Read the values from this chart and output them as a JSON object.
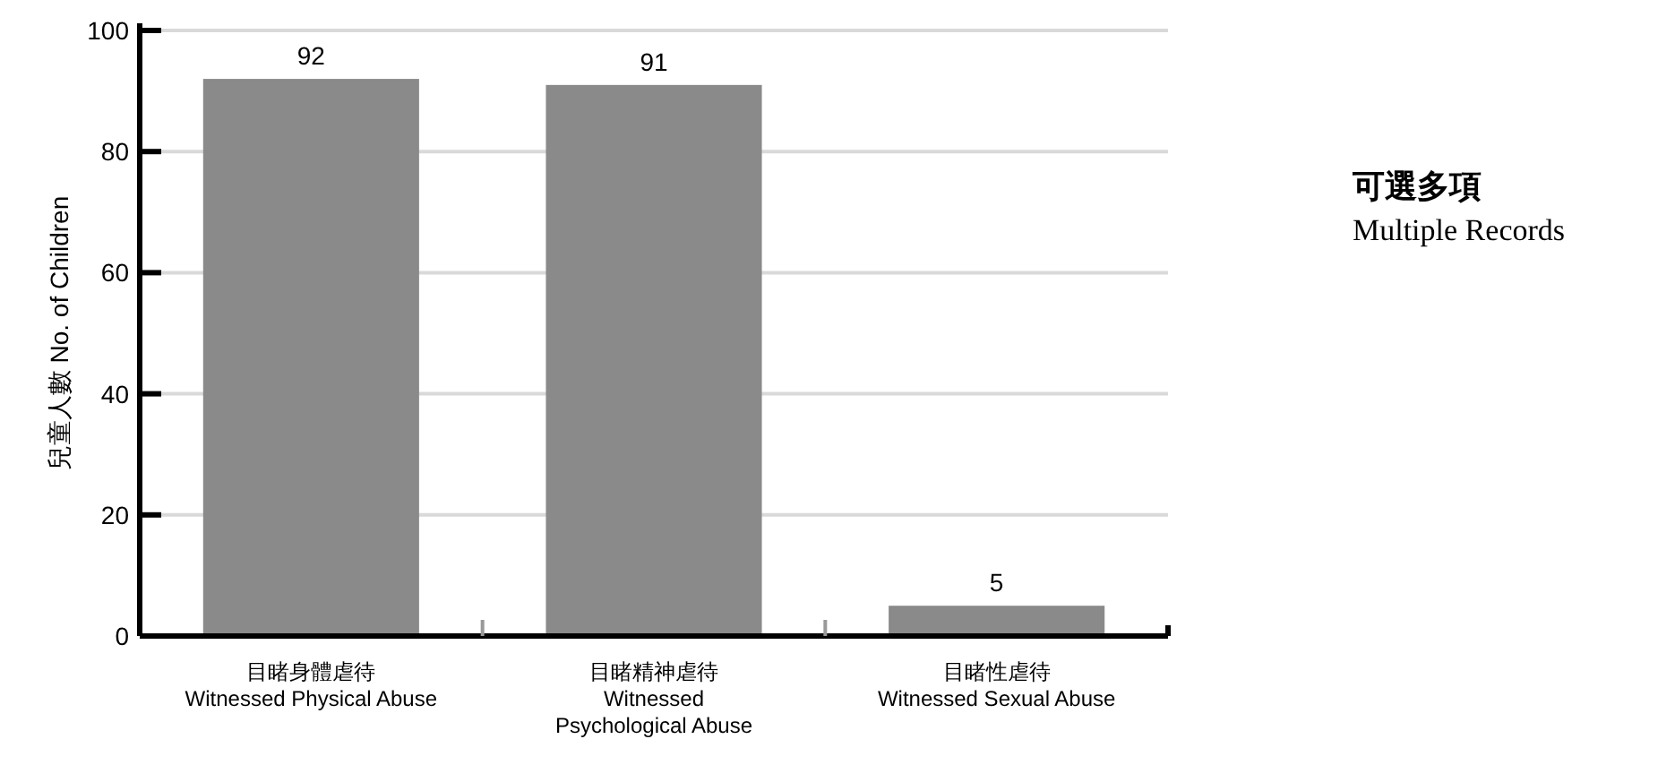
{
  "chart_data": {
    "type": "bar",
    "ylabel": "兒童人數 No. of Children",
    "categories": [
      "目睹身體虐待\nWitnessed Physical Abuse",
      "目睹精神虐待\nWitnessed\nPsychological Abuse",
      "目睹性虐待\nWitnessed Sexual Abuse"
    ],
    "values": [
      92,
      91,
      5
    ],
    "color": "#8a8a8a",
    "ylim": [
      0,
      100
    ],
    "yticks": [
      0,
      20,
      40,
      60,
      80,
      100
    ],
    "grid": "y",
    "data_labels": true,
    "annotations": [
      "可選多項",
      "Multiple Records"
    ]
  }
}
